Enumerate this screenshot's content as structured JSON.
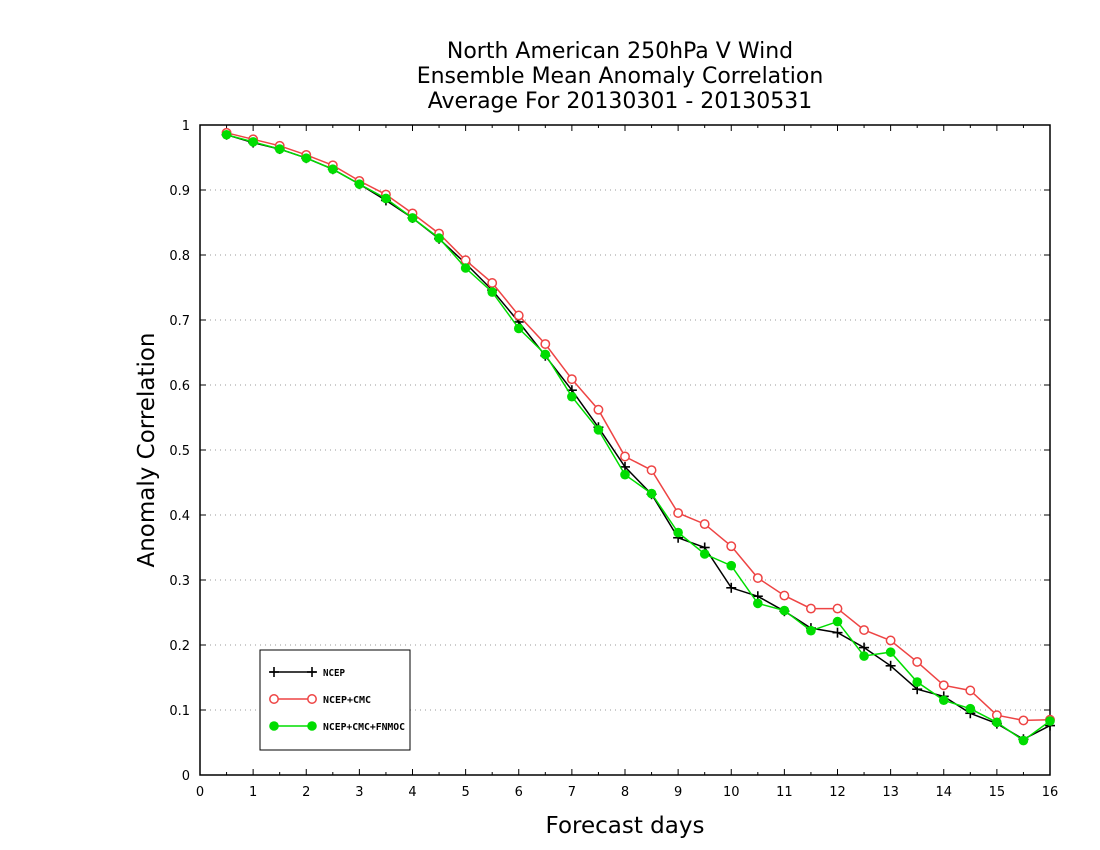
{
  "chart_data": {
    "type": "line",
    "title_lines": [
      "North American 250hPa V Wind",
      "Ensemble Mean Anomaly Correlation",
      "Average For 20130301 - 20130531"
    ],
    "xlabel": "Forecast days",
    "ylabel": "Anomaly Correlation",
    "xlim": [
      0,
      16
    ],
    "ylim": [
      0,
      1
    ],
    "x_ticks": [
      "0",
      "1",
      "2",
      "3",
      "4",
      "5",
      "6",
      "7",
      "8",
      "9",
      "10",
      "11",
      "12",
      "13",
      "14",
      "15",
      "16"
    ],
    "y_ticks": [
      "0",
      "0.1",
      "0.2",
      "0.3",
      "0.4",
      "0.5",
      "0.6",
      "0.7",
      "0.8",
      "0.9",
      "1"
    ],
    "grid": "horizontal dotted",
    "legend_position": "bottom-left",
    "x": [
      0.5,
      1,
      1.5,
      2,
      2.5,
      3,
      3.5,
      4,
      4.5,
      5,
      5.5,
      6,
      6.5,
      7,
      7.5,
      8,
      8.5,
      9,
      9.5,
      10,
      10.5,
      11,
      11.5,
      12,
      12.5,
      13,
      13.5,
      14,
      14.5,
      15,
      15.5,
      16
    ],
    "series": [
      {
        "name": "NCEP",
        "color": "#000000",
        "marker": "plus",
        "values": [
          0.985,
          0.973,
          0.963,
          0.949,
          0.932,
          0.909,
          0.884,
          0.857,
          0.825,
          0.787,
          0.746,
          0.697,
          0.645,
          0.592,
          0.535,
          0.474,
          0.432,
          0.365,
          0.35,
          0.288,
          0.275,
          0.252,
          0.226,
          0.219,
          0.196,
          0.168,
          0.132,
          0.121,
          0.095,
          0.079,
          0.055,
          0.076
        ]
      },
      {
        "name": "NCEP+CMC",
        "color": "#ee4444",
        "marker": "open-circle",
        "values": [
          0.988,
          0.978,
          0.968,
          0.954,
          0.938,
          0.914,
          0.893,
          0.864,
          0.833,
          0.792,
          0.757,
          0.707,
          0.663,
          0.609,
          0.562,
          0.49,
          0.469,
          0.403,
          0.386,
          0.352,
          0.303,
          0.276,
          0.256,
          0.256,
          0.223,
          0.207,
          0.174,
          0.138,
          0.13,
          0.092,
          0.084,
          0.085
        ]
      },
      {
        "name": "NCEP+CMC+FNMOC",
        "color": "#00dd00",
        "marker": "filled-circle",
        "values": [
          0.985,
          0.974,
          0.963,
          0.949,
          0.932,
          0.909,
          0.887,
          0.857,
          0.826,
          0.78,
          0.743,
          0.687,
          0.647,
          0.582,
          0.531,
          0.462,
          0.433,
          0.373,
          0.34,
          0.322,
          0.264,
          0.253,
          0.222,
          0.236,
          0.183,
          0.189,
          0.143,
          0.115,
          0.102,
          0.081,
          0.053,
          0.083
        ]
      }
    ]
  }
}
